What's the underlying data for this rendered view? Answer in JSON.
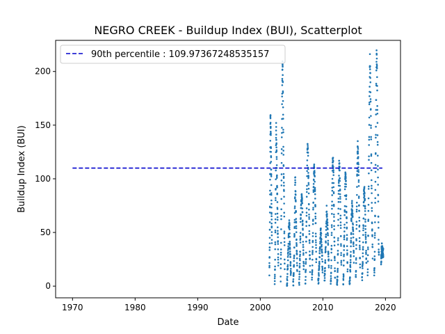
{
  "chart_data": {
    "type": "scatter",
    "title": "NEGRO CREEK - Buildup Index (BUI), Scatterplot",
    "xlabel": "Date",
    "ylabel": "Buildup Index (BUI)",
    "x_unit": "year",
    "xlim": [
      1967.3,
      2022.4
    ],
    "ylim": [
      -10.9,
      229.0
    ],
    "x_ticks": [
      1970,
      1980,
      1990,
      2000,
      2010,
      2020
    ],
    "y_ticks": [
      0,
      50,
      100,
      150,
      200
    ],
    "legend_position": "top-left",
    "grid": false,
    "reference_line": {
      "label": "90th percentile : 109.97367248535157",
      "value": 109.97367248535157,
      "x_range": [
        1970.0,
        2019.5
      ],
      "color": "#0000cc",
      "style": "dashed"
    },
    "series": [
      {
        "color": "#1f77b4",
        "seasons": [
          {
            "start": 2001.45,
            "end": 2001.85,
            "values": [
              15,
              38,
              95,
              160,
              140,
              110,
              70,
              40
            ]
          },
          {
            "start": 2002.3,
            "end": 2002.88,
            "values": [
              0,
              20,
              60,
              100,
              148,
              132,
              105,
              85,
              60,
              40,
              20
            ]
          },
          {
            "start": 2003.25,
            "end": 2003.9,
            "values": [
              5,
              30,
              80,
              130,
              175,
              210,
              190,
              150,
              110,
              90,
              50,
              20
            ]
          },
          {
            "start": 2004.25,
            "end": 2004.9,
            "values": [
              0,
              10,
              25,
              40,
              60,
              55,
              35,
              20,
              10
            ]
          },
          {
            "start": 2005.25,
            "end": 2005.9,
            "values": [
              0,
              10,
              30,
              60,
              102,
              80,
              55,
              35,
              15
            ]
          },
          {
            "start": 2006.2,
            "end": 2006.95,
            "values": [
              0,
              15,
              40,
              70,
              85,
              80,
              60,
              40,
              15
            ]
          },
          {
            "start": 2007.2,
            "end": 2007.95,
            "values": [
              2,
              20,
              55,
              90,
              131,
              125,
              100,
              70,
              40,
              15
            ]
          },
          {
            "start": 2008.25,
            "end": 2008.95,
            "values": [
              5,
              25,
              60,
              95,
              111,
              100,
              80,
              50,
              20
            ]
          },
          {
            "start": 2009.25,
            "end": 2009.95,
            "values": [
              3,
              10,
              25,
              40,
              50,
              45,
              30,
              15
            ]
          },
          {
            "start": 2010.25,
            "end": 2010.95,
            "values": [
              5,
              20,
              45,
              70,
              60,
              40,
              20
            ]
          },
          {
            "start": 2011.25,
            "end": 2011.95,
            "values": [
              0,
              15,
              45,
              85,
              118,
              115,
              95,
              60,
              30,
              10
            ]
          },
          {
            "start": 2012.25,
            "end": 2012.95,
            "values": [
              0,
              10,
              40,
              90,
              115,
              105,
              80,
              50,
              20
            ]
          },
          {
            "start": 2013.25,
            "end": 2013.95,
            "values": [
              3,
              20,
              50,
              80,
              108,
              95,
              70,
              40,
              15
            ]
          },
          {
            "start": 2014.25,
            "end": 2014.95,
            "values": [
              0,
              10,
              30,
              60,
              76,
              65,
              45,
              25
            ]
          },
          {
            "start": 2015.25,
            "end": 2015.95,
            "values": [
              5,
              30,
              70,
              110,
              132,
              120,
              100,
              70,
              40,
              15
            ]
          },
          {
            "start": 2016.25,
            "end": 2016.95,
            "values": [
              5,
              20,
              50,
              85,
              88,
              70,
              45,
              20
            ]
          },
          {
            "start": 2017.15,
            "end": 2017.95,
            "values": [
              10,
              40,
              80,
              130,
              175,
              212,
              190,
              160,
              120,
              80,
              50,
              30
            ]
          },
          {
            "start": 2018.2,
            "end": 2018.95,
            "values": [
              8,
              30,
              70,
              120,
              170,
              219,
              200,
              150,
              100,
              55,
              25
            ]
          },
          {
            "start": 2019.3,
            "end": 2019.65,
            "values": [
              25,
              35,
              32,
              30
            ]
          }
        ]
      }
    ]
  }
}
